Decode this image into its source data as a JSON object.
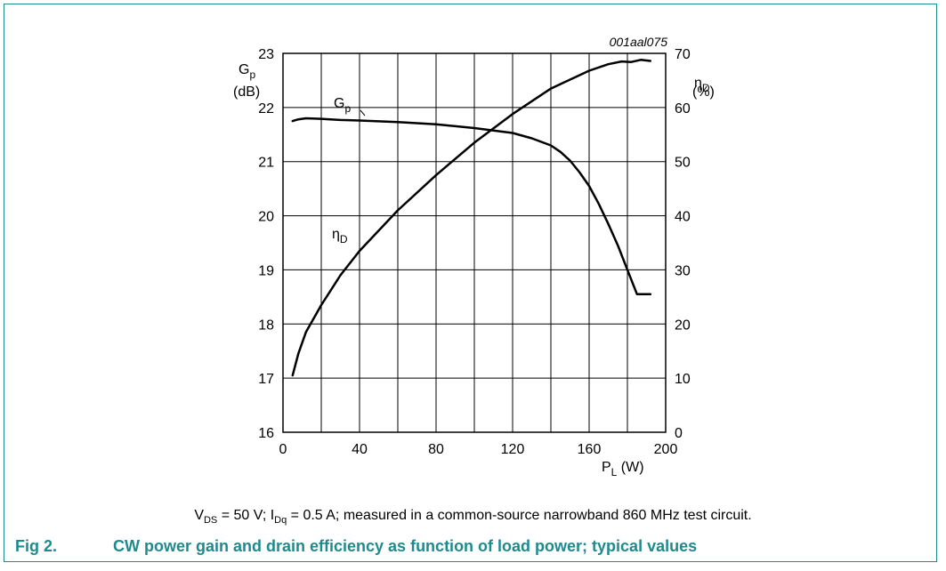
{
  "chart_data": {
    "type": "line",
    "figure_id": "001aal075",
    "x_axis": {
      "label": "P",
      "label_sub": "L",
      "label_unit": " (W)",
      "range": [
        0,
        200
      ],
      "ticks": [
        0,
        40,
        80,
        120,
        160,
        200
      ]
    },
    "y_left": {
      "label": "G",
      "label_sub": "p",
      "label_unit": "(dB)",
      "range": [
        16,
        23
      ],
      "ticks": [
        16,
        17,
        18,
        19,
        20,
        21,
        22,
        23
      ]
    },
    "y_right": {
      "label": "η",
      "label_sub": "D",
      "label_unit": "(%)",
      "range": [
        0,
        70
      ],
      "ticks": [
        0,
        10,
        20,
        30,
        40,
        50,
        60,
        70
      ]
    },
    "grid": true,
    "series": [
      {
        "name": "Gp",
        "label_main": "G",
        "label_sub": "p",
        "axis": "left",
        "x": [
          5,
          8,
          12,
          20,
          30,
          40,
          60,
          80,
          100,
          120,
          130,
          140,
          145,
          150,
          155,
          160,
          165,
          170,
          175,
          180,
          185,
          192
        ],
        "y": [
          21.75,
          21.78,
          21.8,
          21.79,
          21.77,
          21.76,
          21.73,
          21.69,
          21.62,
          21.53,
          21.43,
          21.3,
          21.18,
          21.02,
          20.8,
          20.55,
          20.22,
          19.85,
          19.45,
          19.0,
          18.55,
          18.55
        ]
      },
      {
        "name": "ηD",
        "label_main": "η",
        "label_sub": "D",
        "axis": "right",
        "x": [
          5,
          8,
          12,
          20,
          30,
          40,
          60,
          80,
          100,
          120,
          140,
          160,
          170,
          177,
          182,
          187,
          192
        ],
        "y": [
          10.5,
          14.5,
          18.5,
          23.5,
          29,
          33.5,
          41,
          47.5,
          53.5,
          58.8,
          63.5,
          66.8,
          68.0,
          68.5,
          68.4,
          68.8,
          68.6
        ]
      }
    ]
  },
  "caption": {
    "conditions": "V_DS = 50 V; I_Dq = 0.5 A; measured in a common-source narrowband 860 MHz test circuit.",
    "fig_number": "Fig 2.",
    "fig_title": "CW power gain and drain efficiency as function of load power; typical values"
  }
}
